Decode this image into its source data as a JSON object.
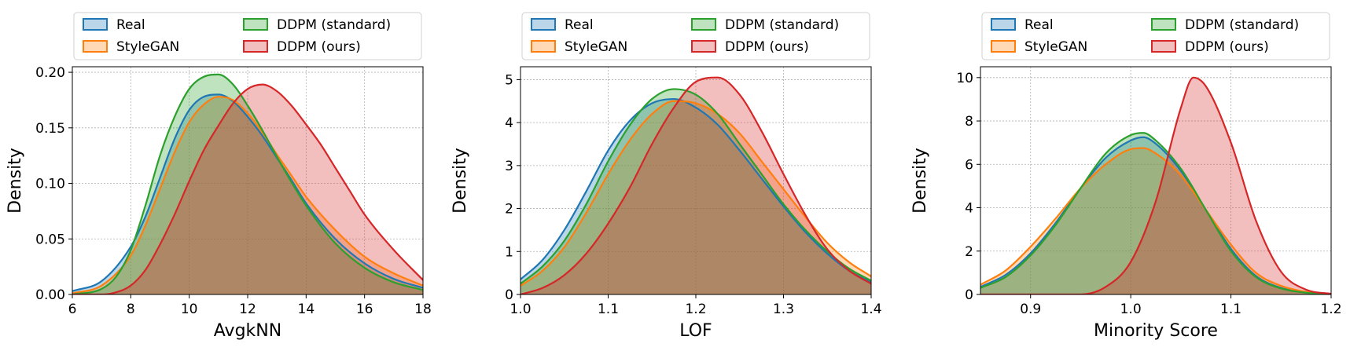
{
  "chart_data": [
    {
      "type": "area",
      "xlabel": "AvgkNN",
      "ylabel": "Density",
      "xlim": [
        6,
        18
      ],
      "ylim": [
        0,
        0.205
      ],
      "xticks": [
        6,
        8,
        10,
        12,
        14,
        16,
        18
      ],
      "yticks": [
        0.0,
        0.05,
        0.1,
        0.15,
        0.2
      ],
      "ytick_format": 2,
      "grid": true,
      "legend": "top-center, 2 columns",
      "legend_entries": [
        "Real",
        "StyleGAN",
        "DDPM (standard)",
        "DDPM (ours)"
      ],
      "series": [
        {
          "name": "Real",
          "color": "#1f77b4",
          "x": [
            6,
            7,
            8,
            8.5,
            9,
            9.5,
            10,
            10.5,
            11,
            11.5,
            12,
            12.5,
            13,
            13.5,
            14,
            15,
            16,
            17,
            18
          ],
          "y": [
            0.003,
            0.012,
            0.043,
            0.07,
            0.105,
            0.14,
            0.166,
            0.178,
            0.18,
            0.174,
            0.16,
            0.143,
            0.123,
            0.103,
            0.082,
            0.05,
            0.028,
            0.014,
            0.006
          ]
        },
        {
          "name": "StyleGAN",
          "color": "#ff7f0e",
          "x": [
            6,
            7,
            8,
            8.5,
            9,
            9.5,
            10,
            10.5,
            11,
            11.5,
            12,
            12.5,
            13,
            13.5,
            14,
            15,
            16,
            17,
            18
          ],
          "y": [
            0.001,
            0.008,
            0.035,
            0.062,
            0.095,
            0.128,
            0.155,
            0.171,
            0.178,
            0.175,
            0.163,
            0.146,
            0.126,
            0.107,
            0.088,
            0.058,
            0.034,
            0.019,
            0.008
          ]
        },
        {
          "name": "DDPM (standard)",
          "color": "#2ca02c",
          "x": [
            6,
            7,
            7.5,
            8,
            8.5,
            9,
            9.5,
            10,
            10.5,
            11,
            11.5,
            12,
            12.5,
            13,
            13.5,
            14,
            15,
            16,
            17,
            18
          ],
          "y": [
            0.0,
            0.005,
            0.016,
            0.04,
            0.08,
            0.125,
            0.16,
            0.185,
            0.196,
            0.198,
            0.189,
            0.17,
            0.148,
            0.124,
            0.101,
            0.08,
            0.046,
            0.024,
            0.011,
            0.004
          ]
        },
        {
          "name": "DDPM (ours)",
          "color": "#d62728",
          "x": [
            6,
            7,
            7.5,
            8,
            8.5,
            9,
            9.5,
            10,
            10.5,
            11,
            11.5,
            12,
            12.5,
            13,
            13.5,
            14,
            14.5,
            15,
            15.5,
            16,
            17,
            18
          ],
          "y": [
            0.0,
            0.0,
            0.002,
            0.008,
            0.022,
            0.045,
            0.072,
            0.102,
            0.13,
            0.152,
            0.172,
            0.185,
            0.189,
            0.183,
            0.17,
            0.153,
            0.135,
            0.114,
            0.093,
            0.072,
            0.04,
            0.013
          ]
        }
      ]
    },
    {
      "type": "area",
      "xlabel": "LOF",
      "ylabel": "Density",
      "xlim": [
        1.0,
        1.4
      ],
      "ylim": [
        0,
        5.3
      ],
      "xticks": [
        1.0,
        1.1,
        1.2,
        1.3,
        1.4
      ],
      "yticks": [
        0,
        1,
        2,
        3,
        4,
        5
      ],
      "xtick_format": 1,
      "grid": true,
      "legend": "top-center, 2 columns",
      "legend_entries": [
        "Real",
        "StyleGAN",
        "DDPM (standard)",
        "DDPM (ours)"
      ],
      "series": [
        {
          "name": "Real",
          "color": "#1f77b4",
          "x": [
            1.0,
            1.025,
            1.05,
            1.075,
            1.1,
            1.125,
            1.15,
            1.175,
            1.2,
            1.225,
            1.25,
            1.275,
            1.3,
            1.325,
            1.35,
            1.375,
            1.4
          ],
          "y": [
            0.35,
            0.8,
            1.5,
            2.4,
            3.35,
            4.05,
            4.45,
            4.55,
            4.35,
            3.95,
            3.35,
            2.7,
            2.05,
            1.45,
            0.95,
            0.55,
            0.28
          ]
        },
        {
          "name": "StyleGAN",
          "color": "#ff7f0e",
          "x": [
            1.0,
            1.025,
            1.05,
            1.075,
            1.1,
            1.125,
            1.15,
            1.175,
            1.2,
            1.225,
            1.25,
            1.275,
            1.3,
            1.325,
            1.35,
            1.375,
            1.4
          ],
          "y": [
            0.2,
            0.55,
            1.1,
            1.9,
            2.8,
            3.6,
            4.2,
            4.5,
            4.45,
            4.2,
            3.75,
            3.1,
            2.45,
            1.8,
            1.2,
            0.75,
            0.42
          ]
        },
        {
          "name": "DDPM (standard)",
          "color": "#2ca02c",
          "x": [
            1.0,
            1.025,
            1.05,
            1.075,
            1.1,
            1.125,
            1.15,
            1.175,
            1.2,
            1.225,
            1.25,
            1.275,
            1.3,
            1.325,
            1.35,
            1.375,
            1.4
          ],
          "y": [
            0.25,
            0.65,
            1.25,
            2.1,
            3.1,
            3.95,
            4.55,
            4.78,
            4.65,
            4.2,
            3.5,
            2.8,
            2.1,
            1.5,
            1.0,
            0.6,
            0.32
          ]
        },
        {
          "name": "DDPM (ours)",
          "color": "#d62728",
          "x": [
            1.0,
            1.025,
            1.05,
            1.075,
            1.1,
            1.125,
            1.15,
            1.175,
            1.2,
            1.225,
            1.25,
            1.275,
            1.3,
            1.325,
            1.35,
            1.375,
            1.4
          ],
          "y": [
            0.0,
            0.15,
            0.45,
            0.95,
            1.65,
            2.5,
            3.5,
            4.35,
            4.95,
            5.05,
            4.65,
            3.8,
            2.8,
            1.85,
            1.05,
            0.55,
            0.25
          ]
        }
      ]
    },
    {
      "type": "area",
      "xlabel": "Minority Score",
      "ylabel": "Density",
      "xlim": [
        0.85,
        1.2
      ],
      "ylim": [
        0,
        10.5
      ],
      "xticks": [
        0.9,
        1.0,
        1.1,
        1.2
      ],
      "yticks": [
        0,
        2,
        4,
        6,
        8,
        10
      ],
      "xtick_format": 1,
      "grid": true,
      "legend": "top-center, 2 columns",
      "legend_entries": [
        "Real",
        "StyleGAN",
        "DDPM (standard)",
        "DDPM (ours)"
      ],
      "series": [
        {
          "name": "Real",
          "color": "#1f77b4",
          "x": [
            0.85,
            0.875,
            0.9,
            0.925,
            0.95,
            0.975,
            1.0,
            1.0125,
            1.025,
            1.05,
            1.075,
            1.1,
            1.125,
            1.15,
            1.175,
            1.2
          ],
          "y": [
            0.35,
            0.9,
            1.9,
            3.3,
            4.9,
            6.3,
            7.1,
            7.25,
            6.95,
            5.7,
            3.9,
            2.1,
            0.85,
            0.3,
            0.1,
            0.02
          ]
        },
        {
          "name": "StyleGAN",
          "color": "#ff7f0e",
          "x": [
            0.85,
            0.875,
            0.9,
            0.925,
            0.95,
            0.975,
            1.0,
            1.0125,
            1.025,
            1.05,
            1.075,
            1.1,
            1.125,
            1.15,
            1.175,
            1.2
          ],
          "y": [
            0.45,
            1.1,
            2.2,
            3.5,
            4.9,
            6.0,
            6.7,
            6.75,
            6.5,
            5.5,
            3.9,
            2.3,
            1.0,
            0.4,
            0.12,
            0.03
          ]
        },
        {
          "name": "DDPM (standard)",
          "color": "#2ca02c",
          "x": [
            0.85,
            0.875,
            0.9,
            0.925,
            0.95,
            0.975,
            1.0,
            1.0125,
            1.025,
            1.05,
            1.075,
            1.1,
            1.125,
            1.15,
            1.175,
            1.2
          ],
          "y": [
            0.3,
            0.8,
            1.8,
            3.2,
            4.9,
            6.5,
            7.35,
            7.45,
            7.1,
            5.8,
            3.9,
            2.0,
            0.8,
            0.28,
            0.08,
            0.02
          ]
        },
        {
          "name": "DDPM (ours)",
          "color": "#d62728",
          "x": [
            0.85,
            0.95,
            0.975,
            1.0,
            1.025,
            1.05,
            1.0625,
            1.075,
            1.1,
            1.125,
            1.15,
            1.175,
            1.2
          ],
          "y": [
            0.0,
            0.0,
            0.35,
            1.5,
            4.3,
            8.6,
            10.0,
            9.6,
            7.0,
            3.4,
            1.05,
            0.22,
            0.03
          ]
        }
      ]
    }
  ]
}
